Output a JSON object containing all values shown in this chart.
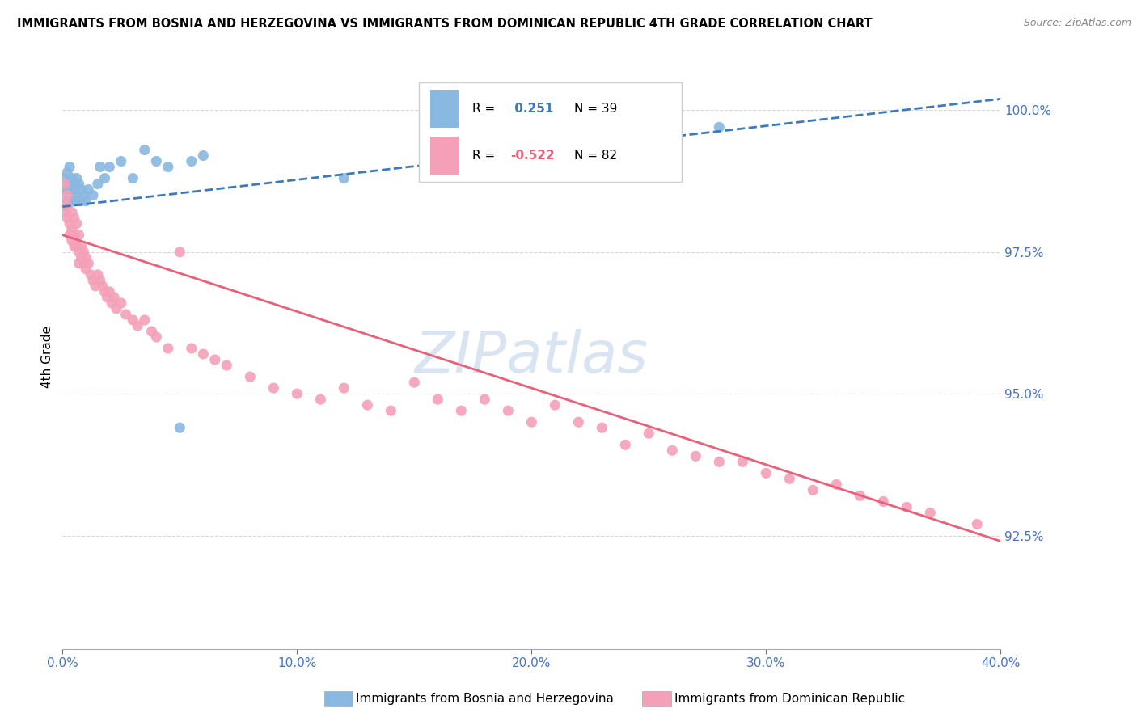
{
  "title": "IMMIGRANTS FROM BOSNIA AND HERZEGOVINA VS IMMIGRANTS FROM DOMINICAN REPUBLIC 4TH GRADE CORRELATION CHART",
  "source": "Source: ZipAtlas.com",
  "ylabel": "4th Grade",
  "blue_color": "#89b8e0",
  "pink_color": "#f4a0b8",
  "blue_line_color": "#3a7abf",
  "pink_line_color": "#e8607a",
  "blue_line_dashed": true,
  "xlim": [
    0.0,
    0.4
  ],
  "ylim": [
    0.905,
    1.008
  ],
  "xticks": [
    0.0,
    0.1,
    0.2,
    0.3,
    0.4
  ],
  "xticklabels": [
    "0.0%",
    "10.0%",
    "20.0%",
    "30.0%",
    "40.0%"
  ],
  "yticks": [
    1.0,
    0.975,
    0.95,
    0.925
  ],
  "yticklabels": [
    "100.0%",
    "97.5%",
    "95.0%",
    "92.5%"
  ],
  "tick_color": "#4472c4",
  "grid_color": "#d8d8d8",
  "watermark": "ZIPatlas",
  "blue_trend_x": [
    0.0,
    0.4
  ],
  "blue_trend_y": [
    0.983,
    1.002
  ],
  "pink_trend_x": [
    0.0,
    0.4
  ],
  "pink_trend_y": [
    0.978,
    0.924
  ],
  "blue_scatter_x": [
    0.001,
    0.001,
    0.001,
    0.002,
    0.002,
    0.002,
    0.003,
    0.003,
    0.003,
    0.004,
    0.004,
    0.004,
    0.005,
    0.005,
    0.005,
    0.006,
    0.006,
    0.007,
    0.007,
    0.008,
    0.008,
    0.009,
    0.01,
    0.011,
    0.013,
    0.015,
    0.016,
    0.018,
    0.02,
    0.025,
    0.03,
    0.035,
    0.04,
    0.045,
    0.05,
    0.055,
    0.06,
    0.12,
    0.28
  ],
  "blue_scatter_y": [
    0.984,
    0.986,
    0.988,
    0.983,
    0.986,
    0.989,
    0.984,
    0.987,
    0.99,
    0.984,
    0.986,
    0.988,
    0.984,
    0.986,
    0.987,
    0.985,
    0.988,
    0.984,
    0.987,
    0.984,
    0.986,
    0.985,
    0.984,
    0.986,
    0.985,
    0.987,
    0.99,
    0.988,
    0.99,
    0.991,
    0.988,
    0.993,
    0.991,
    0.99,
    0.944,
    0.991,
    0.992,
    0.988,
    0.997
  ],
  "pink_scatter_x": [
    0.001,
    0.001,
    0.001,
    0.002,
    0.002,
    0.002,
    0.003,
    0.003,
    0.004,
    0.004,
    0.004,
    0.005,
    0.005,
    0.005,
    0.006,
    0.006,
    0.007,
    0.007,
    0.007,
    0.008,
    0.008,
    0.009,
    0.009,
    0.01,
    0.01,
    0.011,
    0.012,
    0.013,
    0.014,
    0.015,
    0.016,
    0.017,
    0.018,
    0.019,
    0.02,
    0.021,
    0.022,
    0.023,
    0.025,
    0.027,
    0.03,
    0.032,
    0.035,
    0.038,
    0.04,
    0.045,
    0.05,
    0.055,
    0.06,
    0.065,
    0.07,
    0.08,
    0.09,
    0.1,
    0.11,
    0.12,
    0.13,
    0.14,
    0.15,
    0.16,
    0.17,
    0.18,
    0.19,
    0.2,
    0.21,
    0.22,
    0.23,
    0.24,
    0.25,
    0.26,
    0.27,
    0.28,
    0.29,
    0.3,
    0.31,
    0.32,
    0.33,
    0.34,
    0.35,
    0.36,
    0.37,
    0.39
  ],
  "pink_scatter_y": [
    0.984,
    0.987,
    0.982,
    0.985,
    0.983,
    0.981,
    0.98,
    0.978,
    0.979,
    0.977,
    0.982,
    0.978,
    0.976,
    0.981,
    0.976,
    0.98,
    0.975,
    0.978,
    0.973,
    0.976,
    0.974,
    0.975,
    0.973,
    0.974,
    0.972,
    0.973,
    0.971,
    0.97,
    0.969,
    0.971,
    0.97,
    0.969,
    0.968,
    0.967,
    0.968,
    0.966,
    0.967,
    0.965,
    0.966,
    0.964,
    0.963,
    0.962,
    0.963,
    0.961,
    0.96,
    0.958,
    0.975,
    0.958,
    0.957,
    0.956,
    0.955,
    0.953,
    0.951,
    0.95,
    0.949,
    0.951,
    0.948,
    0.947,
    0.952,
    0.949,
    0.947,
    0.949,
    0.947,
    0.945,
    0.948,
    0.945,
    0.944,
    0.941,
    0.943,
    0.94,
    0.939,
    0.938,
    0.938,
    0.936,
    0.935,
    0.933,
    0.934,
    0.932,
    0.931,
    0.93,
    0.929,
    0.927
  ]
}
